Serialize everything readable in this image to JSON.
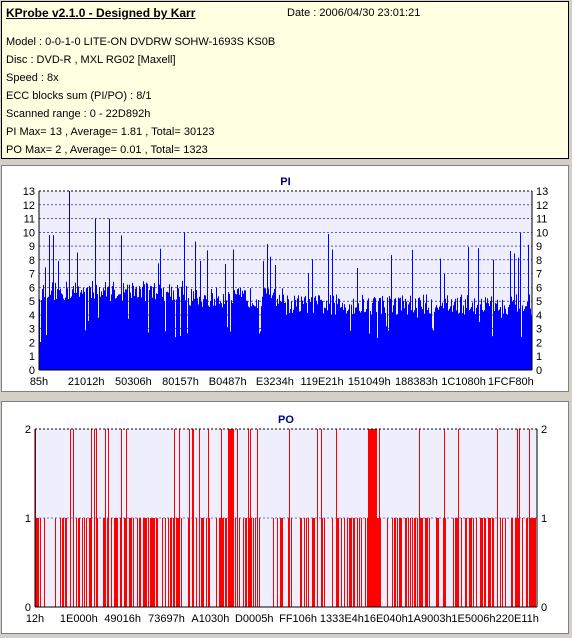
{
  "header": {
    "title": "KProbe v2.1.0 - Designed by Karr",
    "date": "Date : 2006/04/30 23:01:21",
    "lines": [
      "Model : 0-0-1-0 LITE-ON DVDRW SOHW-1693S KS0B",
      "Disc : DVD-R , MXL RG02 [Maxell]",
      "Speed : 8x",
      "ECC blocks sum (PI/PO) : 8/1",
      "Scanned range : 0 - 22D892h",
      "PI Max= 13 , Average= 1.81 , Total= 30123",
      "PO Max= 2 , Average= 0.01 , Total= 1323"
    ]
  },
  "chart_data": [
    {
      "type": "bar",
      "title": "PI",
      "ylim": [
        0,
        13
      ],
      "yticks": [
        0,
        1,
        2,
        3,
        4,
        5,
        6,
        7,
        8,
        9,
        10,
        11,
        12,
        13
      ],
      "xtick_labels": [
        "85h",
        "21012h",
        "50306h",
        "80157h",
        "B0487h",
        "E3234h",
        "119E21h",
        "151049h",
        "188383h",
        "1C1080h",
        "1FCF80h"
      ],
      "series_color": "#0000ff",
      "grid": true,
      "max": 13,
      "average": 1.81
    },
    {
      "type": "bar",
      "title": "PO",
      "ylim": [
        0,
        2
      ],
      "yticks": [
        0,
        1,
        2
      ],
      "xtick_labels": [
        "12h",
        "1E000h",
        "49016h",
        "73697h",
        "A1030h",
        "D0005h",
        "FF106h",
        "1333E4h",
        "16E040h",
        "1A9003h",
        "1E5006h",
        "220E11h"
      ],
      "series_color": "#ff0000",
      "grid": true,
      "max": 2,
      "average": 0.01
    }
  ]
}
